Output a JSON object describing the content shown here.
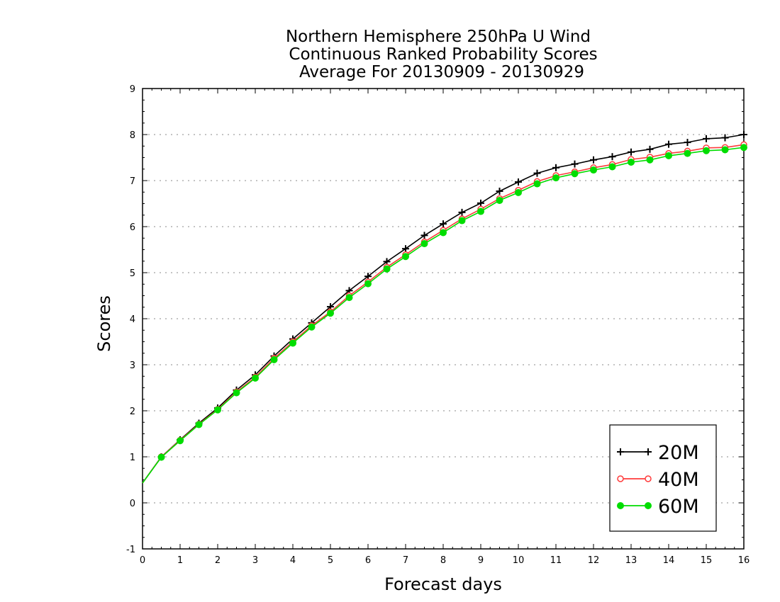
{
  "chart_data": {
    "type": "line",
    "title": [
      "Northern Hemisphere 250hPa U Wind",
      "Continuous Ranked Probability Scores",
      "Average For 20130909 - 20130929"
    ],
    "xlabel": "Forecast days",
    "ylabel": "Scores",
    "xlim": [
      0,
      16
    ],
    "ylim": [
      -1,
      9
    ],
    "x_ticks": [
      0,
      1,
      2,
      3,
      4,
      5,
      6,
      7,
      8,
      9,
      10,
      11,
      12,
      13,
      14,
      15,
      16
    ],
    "x_tick_labels": [
      "0",
      "1",
      "2",
      "3",
      "4",
      "5",
      "6",
      "7",
      "8",
      "9",
      "10",
      "11",
      "12",
      "13",
      "14",
      "15",
      "16"
    ],
    "y_ticks": [
      -1,
      0,
      1,
      2,
      3,
      4,
      5,
      6,
      7,
      8,
      9
    ],
    "y_tick_labels": [
      "-1",
      "0",
      "1",
      "2",
      "3",
      "4",
      "5",
      "6",
      "7",
      "8",
      "9"
    ],
    "grid": "horizontal dotted",
    "legend_position": "bottom-right",
    "x": [
      0,
      0.5,
      1,
      1.5,
      2,
      2.5,
      3,
      3.5,
      4,
      4.5,
      5,
      5.5,
      6,
      6.5,
      7,
      7.5,
      8,
      8.5,
      9,
      9.5,
      10,
      10.5,
      11,
      11.5,
      12,
      12.5,
      13,
      13.5,
      14,
      14.5,
      15,
      15.5,
      16
    ],
    "series": [
      {
        "name": "20M",
        "color": "#000000",
        "marker": "plus",
        "values": [
          0.43,
          1.0,
          1.37,
          1.73,
          2.06,
          2.45,
          2.78,
          3.19,
          3.56,
          3.91,
          4.26,
          4.61,
          4.92,
          5.24,
          5.52,
          5.81,
          6.06,
          6.31,
          6.51,
          6.77,
          6.97,
          7.16,
          7.28,
          7.36,
          7.45,
          7.52,
          7.62,
          7.68,
          7.79,
          7.83,
          7.91,
          7.93,
          8.0
        ]
      },
      {
        "name": "40M",
        "color": "#ff3b3b",
        "marker": "open-circle",
        "values": [
          0.43,
          1.0,
          1.36,
          1.71,
          2.03,
          2.41,
          2.73,
          3.14,
          3.5,
          3.85,
          4.15,
          4.5,
          4.8,
          5.12,
          5.39,
          5.67,
          5.92,
          6.17,
          6.38,
          6.61,
          6.79,
          6.98,
          7.11,
          7.19,
          7.28,
          7.35,
          7.46,
          7.51,
          7.59,
          7.64,
          7.71,
          7.72,
          7.78
        ]
      },
      {
        "name": "60M",
        "color": "#00dd00",
        "marker": "filled-circle",
        "values": [
          0.43,
          0.99,
          1.35,
          1.7,
          2.02,
          2.39,
          2.71,
          3.11,
          3.47,
          3.82,
          4.12,
          4.46,
          4.76,
          5.08,
          5.35,
          5.63,
          5.87,
          6.13,
          6.33,
          6.57,
          6.74,
          6.93,
          7.06,
          7.15,
          7.23,
          7.3,
          7.4,
          7.45,
          7.54,
          7.59,
          7.65,
          7.67,
          7.72
        ]
      }
    ]
  }
}
